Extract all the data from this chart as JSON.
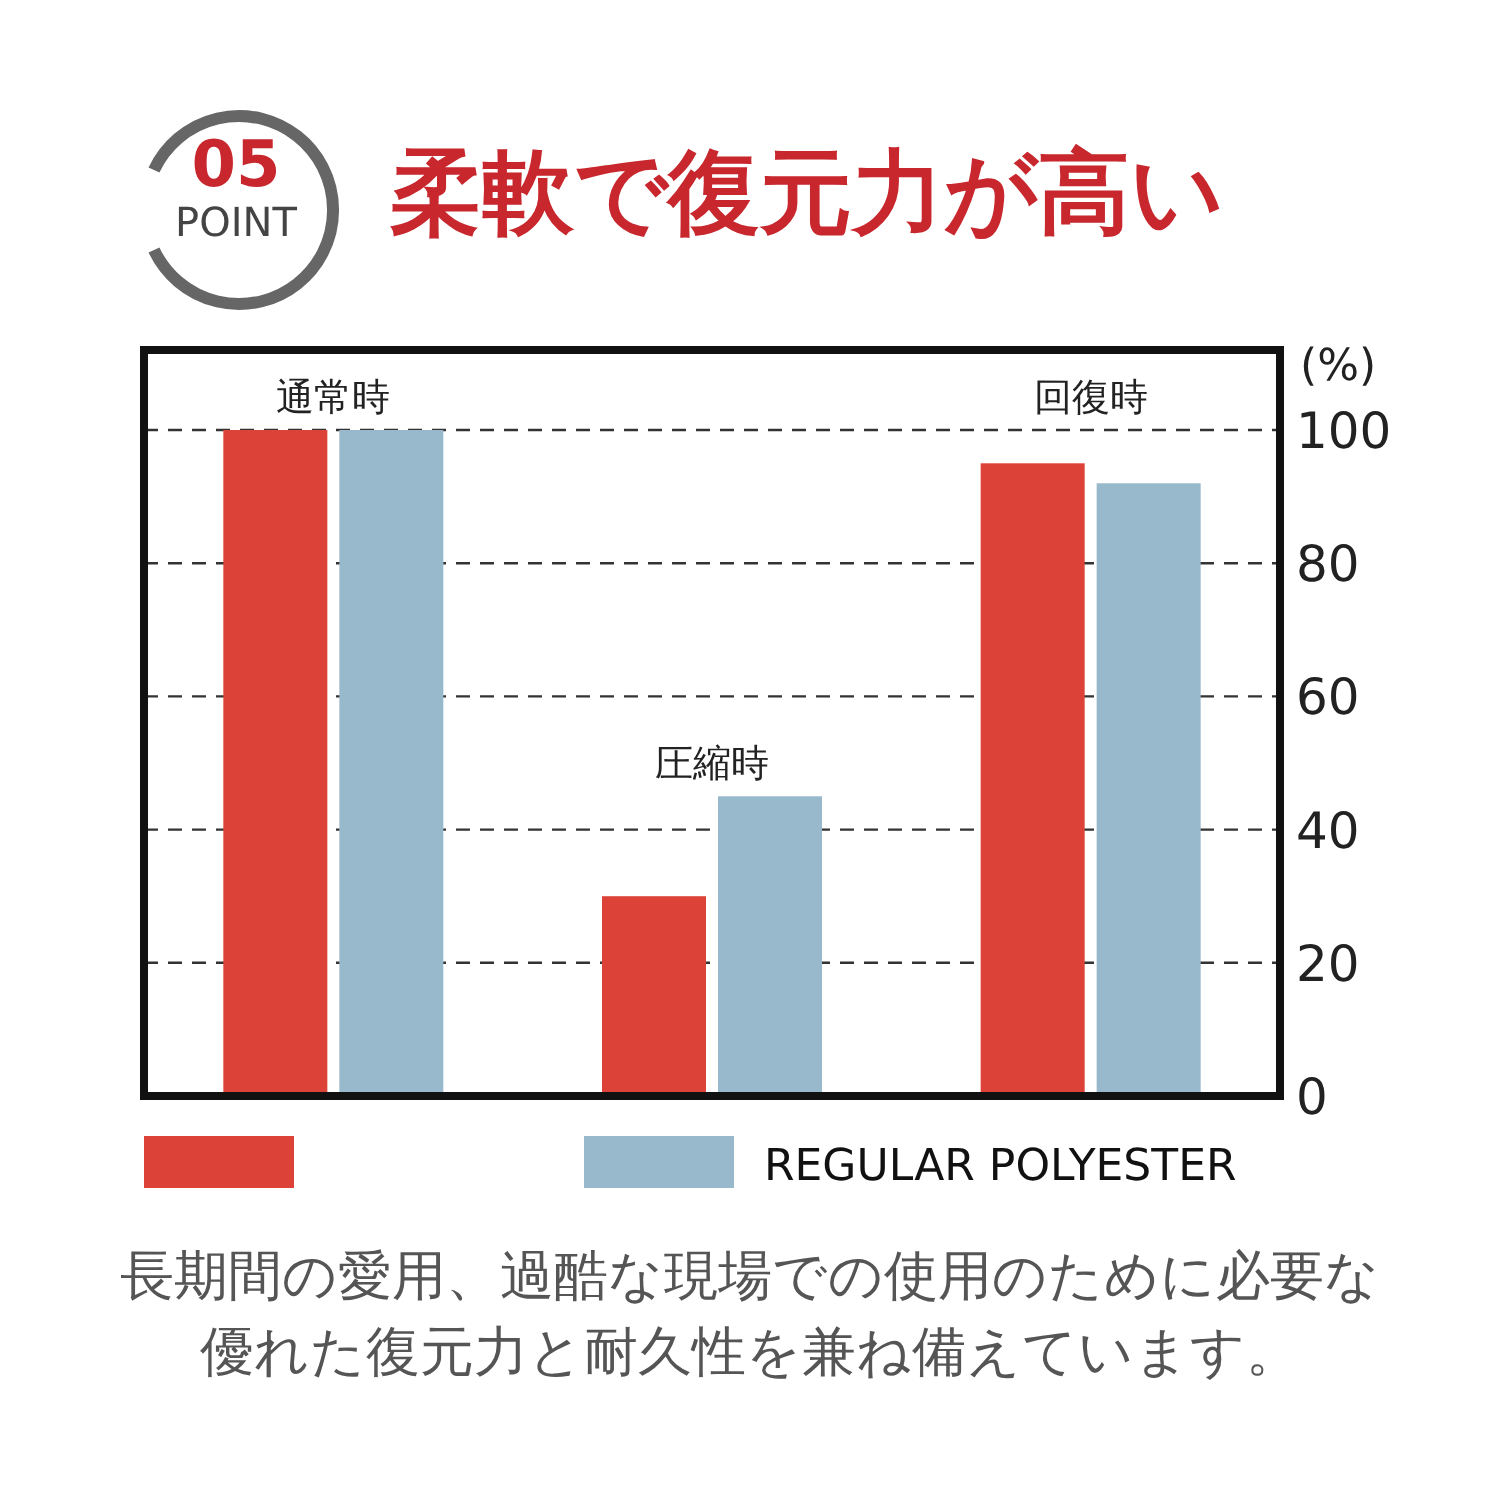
{
  "chart_data": {
    "type": "bar",
    "title": "柔軟で復元力が高い",
    "categories": [
      "通常時",
      "圧縮時",
      "回復時"
    ],
    "series": [
      {
        "color": "#dc4237",
        "values": [
          100,
          30,
          95
        ]
      },
      {
        "name": "REGULAR POLYESTER",
        "color": "#98b9cc",
        "values": [
          100,
          45,
          92
        ]
      }
    ],
    "ylabel": "(%)",
    "ylim": [
      0,
      100
    ],
    "yticks": [
      0,
      20,
      40,
      60,
      80,
      100
    ],
    "grid": "y",
    "legend": "bottom",
    "annotations": [
      "05",
      "POINT",
      "長期間の愛用、過酷な現場での使用のために必要な優れた復元力と耐久性を兼ね備えています。"
    ]
  }
}
